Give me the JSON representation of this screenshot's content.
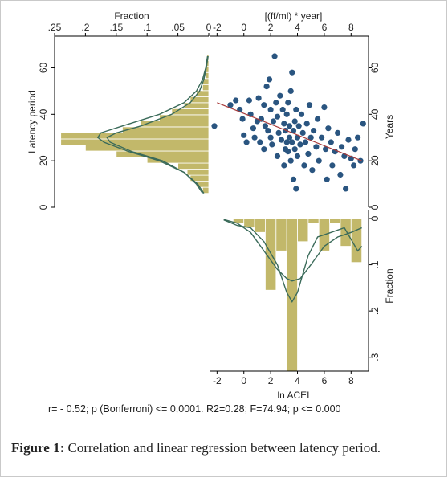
{
  "caption": {
    "label": "Figure 1:",
    "text": " Correlation and linear regression between latency period."
  },
  "stats_text": "r= - 0.52; p (Bonferroni) <= 0,0001. R2=0.28; F=74.94; p <= 0.000",
  "chart_data": [
    {
      "type": "bar",
      "orientation": "horizontal",
      "xlabel": "Fraction",
      "ylabel": "Latency period",
      "xlim": [
        0.25,
        0
      ],
      "ylim": [
        0,
        65
      ],
      "xticks": [
        ".25",
        ".2",
        ".15",
        ".1",
        ".05",
        "0"
      ],
      "xtick_values": [
        0.25,
        0.2,
        0.15,
        0.1,
        0.05,
        0
      ],
      "yticks": [
        "0",
        "20",
        "40",
        "60"
      ],
      "ytick_values": [
        0,
        20,
        40,
        60
      ],
      "bin_width": 2.6,
      "bins": [
        {
          "center": 7.3,
          "value": 0.01
        },
        {
          "center": 9.9,
          "value": 0.02
        },
        {
          "center": 12.5,
          "value": 0.03
        },
        {
          "center": 15.1,
          "value": 0.035
        },
        {
          "center": 17.7,
          "value": 0.05
        },
        {
          "center": 20.3,
          "value": 0.1
        },
        {
          "center": 22.9,
          "value": 0.15
        },
        {
          "center": 25.5,
          "value": 0.2
        },
        {
          "center": 28.1,
          "value": 0.24
        },
        {
          "center": 30.7,
          "value": 0.24
        },
        {
          "center": 33.3,
          "value": 0.14
        },
        {
          "center": 35.9,
          "value": 0.11
        },
        {
          "center": 38.5,
          "value": 0.08
        },
        {
          "center": 41.1,
          "value": 0.06
        },
        {
          "center": 43.7,
          "value": 0.04
        },
        {
          "center": 46.3,
          "value": 0.03
        },
        {
          "center": 48.9,
          "value": 0.02
        },
        {
          "center": 51.5,
          "value": 0.01
        },
        {
          "center": 54.1,
          "value": 0.01
        },
        {
          "center": 56.7,
          "value": 0.005
        },
        {
          "center": 59.3,
          "value": 0.005
        },
        {
          "center": 61.9,
          "value": 0.005
        },
        {
          "center": 64.5,
          "value": 0.003
        }
      ],
      "curves": [
        {
          "points": [
            [
              0.002,
              65
            ],
            [
              0.005,
              60
            ],
            [
              0.01,
              55
            ],
            [
              0.02,
              50
            ],
            [
              0.04,
              45
            ],
            [
              0.08,
              40
            ],
            [
              0.14,
              35
            ],
            [
              0.175,
              32
            ],
            [
              0.18,
              30
            ],
            [
              0.17,
              28
            ],
            [
              0.13,
              24
            ],
            [
              0.08,
              20
            ],
            [
              0.04,
              15
            ],
            [
              0.02,
              10
            ],
            [
              0.01,
              6
            ]
          ]
        },
        {
          "points": [
            [
              0.001,
              65
            ],
            [
              0.004,
              60
            ],
            [
              0.008,
              55
            ],
            [
              0.015,
              50
            ],
            [
              0.03,
              45
            ],
            [
              0.06,
              40
            ],
            [
              0.11,
              35
            ],
            [
              0.15,
              32
            ],
            [
              0.165,
              30
            ],
            [
              0.16,
              28
            ],
            [
              0.125,
              24
            ],
            [
              0.075,
              20
            ],
            [
              0.04,
              15
            ],
            [
              0.018,
              10
            ],
            [
              0.008,
              6
            ]
          ]
        }
      ],
      "color_bar": "#c2b86a",
      "color_curve": "#3b6b5a"
    },
    {
      "type": "scatter",
      "x2label": "[(ff/ml) * year]",
      "y2label": "Years",
      "xlim": [
        -2.5,
        9.3
      ],
      "ylim": [
        0,
        65
      ],
      "xticks": [
        "-2",
        "0",
        "2",
        "4",
        "6",
        "8"
      ],
      "xtick_values": [
        -2,
        0,
        2,
        4,
        6,
        8
      ],
      "yticks": [
        "0",
        "20",
        "40",
        "60"
      ],
      "ytick_values": [
        0,
        20,
        40,
        60
      ],
      "regression": {
        "x": [
          -2,
          8.8
        ],
        "y": [
          45,
          20
        ]
      },
      "color_point": "#2a5580",
      "color_regression": "#a83a3a",
      "points": [
        [
          -2.2,
          35
        ],
        [
          -1.0,
          44
        ],
        [
          -0.6,
          46
        ],
        [
          -0.3,
          42
        ],
        [
          -0.1,
          38
        ],
        [
          0.0,
          31
        ],
        [
          0.2,
          28
        ],
        [
          0.4,
          46
        ],
        [
          0.5,
          40
        ],
        [
          0.7,
          34
        ],
        [
          0.8,
          30
        ],
        [
          1.0,
          37
        ],
        [
          1.1,
          47
        ],
        [
          1.2,
          28
        ],
        [
          1.3,
          38
        ],
        [
          1.5,
          44
        ],
        [
          1.5,
          25
        ],
        [
          1.6,
          35
        ],
        [
          1.7,
          52
        ],
        [
          1.8,
          33
        ],
        [
          1.9,
          55
        ],
        [
          2.0,
          42
        ],
        [
          2.0,
          30
        ],
        [
          2.1,
          27
        ],
        [
          2.2,
          37
        ],
        [
          2.3,
          65
        ],
        [
          2.4,
          45
        ],
        [
          2.5,
          22
        ],
        [
          2.5,
          39
        ],
        [
          2.6,
          32
        ],
        [
          2.7,
          48
        ],
        [
          2.8,
          29
        ],
        [
          2.9,
          42
        ],
        [
          3.0,
          36
        ],
        [
          3.0,
          18
        ],
        [
          3.1,
          25
        ],
        [
          3.1,
          33
        ],
        [
          3.2,
          40
        ],
        [
          3.2,
          28
        ],
        [
          3.3,
          45
        ],
        [
          3.3,
          24
        ],
        [
          3.4,
          30
        ],
        [
          3.4,
          35
        ],
        [
          3.5,
          20
        ],
        [
          3.5,
          50
        ],
        [
          3.6,
          58
        ],
        [
          3.6,
          28
        ],
        [
          3.7,
          33
        ],
        [
          3.7,
          12
        ],
        [
          3.8,
          37
        ],
        [
          3.8,
          25
        ],
        [
          3.9,
          8
        ],
        [
          3.9,
          42
        ],
        [
          4.0,
          30
        ],
        [
          4.0,
          22
        ],
        [
          4.1,
          35
        ],
        [
          4.2,
          27
        ],
        [
          4.3,
          40
        ],
        [
          4.4,
          32
        ],
        [
          4.5,
          18
        ],
        [
          4.6,
          28
        ],
        [
          4.7,
          36
        ],
        [
          4.8,
          23
        ],
        [
          4.9,
          44
        ],
        [
          5.0,
          30
        ],
        [
          5.1,
          16
        ],
        [
          5.2,
          33
        ],
        [
          5.4,
          26
        ],
        [
          5.5,
          38
        ],
        [
          5.6,
          20
        ],
        [
          5.8,
          30
        ],
        [
          6.0,
          43
        ],
        [
          6.1,
          25
        ],
        [
          6.2,
          12
        ],
        [
          6.3,
          34
        ],
        [
          6.5,
          28
        ],
        [
          6.6,
          18
        ],
        [
          6.8,
          24
        ],
        [
          7.0,
          32
        ],
        [
          7.2,
          14
        ],
        [
          7.3,
          26
        ],
        [
          7.5,
          22
        ],
        [
          7.6,
          8
        ],
        [
          7.8,
          29
        ],
        [
          8.0,
          21
        ],
        [
          8.2,
          18
        ],
        [
          8.3,
          25
        ],
        [
          8.5,
          30
        ],
        [
          8.7,
          20
        ],
        [
          8.9,
          36
        ]
      ]
    },
    {
      "type": "bar",
      "orientation": "vertical-down",
      "xlabel": "ln ACEI",
      "ylabel": "Fraction",
      "xlim": [
        -2.5,
        9.3
      ],
      "ylim": [
        0,
        0.33
      ],
      "xticks": [
        "-2",
        "0",
        "2",
        "4",
        "6",
        "8"
      ],
      "xtick_values": [
        -2,
        0,
        2,
        4,
        6,
        8
      ],
      "yticks": [
        "0",
        ".1",
        ".2",
        ".3"
      ],
      "ytick_values": [
        0,
        0.1,
        0.2,
        0.3
      ],
      "bin_width": 0.8,
      "bins": [
        {
          "center": -0.4,
          "value": 0.01
        },
        {
          "center": 0.4,
          "value": 0.02
        },
        {
          "center": 1.2,
          "value": 0.03
        },
        {
          "center": 2.0,
          "value": 0.155
        },
        {
          "center": 2.8,
          "value": 0.07
        },
        {
          "center": 3.6,
          "value": 0.33
        },
        {
          "center": 4.4,
          "value": 0.05
        },
        {
          "center": 5.2,
          "value": 0.01
        },
        {
          "center": 6.0,
          "value": 0.07
        },
        {
          "center": 6.8,
          "value": 0.01
        },
        {
          "center": 7.6,
          "value": 0.06
        },
        {
          "center": 8.4,
          "value": 0.095
        }
      ],
      "curves": [
        {
          "points": [
            [
              -1.5,
              0.002
            ],
            [
              -0.5,
              0.01
            ],
            [
              0.5,
              0.03
            ],
            [
              1.5,
              0.07
            ],
            [
              2.5,
              0.11
            ],
            [
              3.2,
              0.13
            ],
            [
              3.6,
              0.135
            ],
            [
              4.2,
              0.13
            ],
            [
              5.0,
              0.1
            ],
            [
              6.0,
              0.06
            ],
            [
              7.0,
              0.04
            ],
            [
              8.0,
              0.03
            ],
            [
              8.8,
              0.02
            ]
          ]
        },
        {
          "points": [
            [
              -1.5,
              0.003
            ],
            [
              -0.5,
              0.015
            ],
            [
              0.5,
              0.02
            ],
            [
              1.5,
              0.05
            ],
            [
              2.5,
              0.1
            ],
            [
              3.2,
              0.16
            ],
            [
              3.6,
              0.18
            ],
            [
              4.0,
              0.16
            ],
            [
              4.8,
              0.08
            ],
            [
              5.5,
              0.04
            ],
            [
              6.5,
              0.03
            ],
            [
              7.5,
              0.02
            ],
            [
              8.5,
              0.07
            ],
            [
              8.8,
              0.06
            ]
          ]
        }
      ],
      "color_bar": "#c2b86a",
      "color_curve": "#3b6b5a"
    }
  ]
}
